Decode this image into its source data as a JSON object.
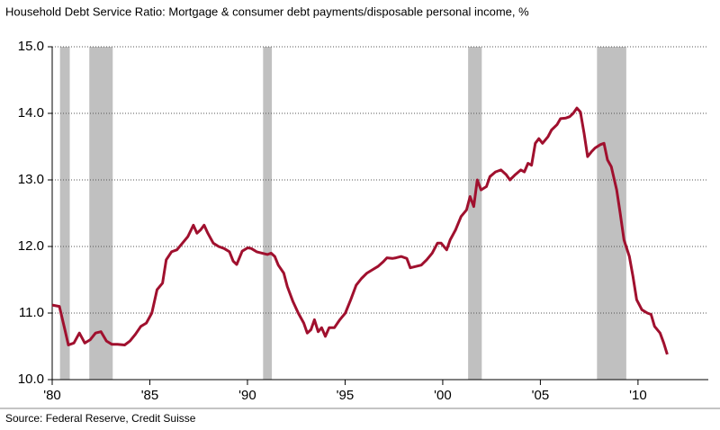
{
  "chart_data": {
    "type": "line",
    "title": "Household Debt Service Ratio: Mortgage & consumer debt payments/disposable personal income, %",
    "source": "Source: Federal Reserve, Credit Suisse",
    "xlim": [
      1980,
      2013.6
    ],
    "ylim": [
      10,
      15
    ],
    "xticks": [
      {
        "value": 1980,
        "label": "'80"
      },
      {
        "value": 1985,
        "label": "'85"
      },
      {
        "value": 1990,
        "label": "'90"
      },
      {
        "value": 1995,
        "label": "'95"
      },
      {
        "value": 2000,
        "label": "'00"
      },
      {
        "value": 2005,
        "label": "'05"
      },
      {
        "value": 2010,
        "label": "'10"
      }
    ],
    "yticks": [
      {
        "value": 10,
        "label": "10.0"
      },
      {
        "value": 11,
        "label": "11.0"
      },
      {
        "value": 12,
        "label": "12.0"
      },
      {
        "value": 13,
        "label": "13.0"
      },
      {
        "value": 14,
        "label": "14.0"
      },
      {
        "value": 15,
        "label": "15.0"
      }
    ],
    "grid": true,
    "recession_color": "#c0c0c0",
    "recessions": [
      [
        1980.4,
        1980.9
      ],
      [
        1981.9,
        1983.1
      ],
      [
        1990.8,
        1991.25
      ],
      [
        2001.3,
        2002.0
      ],
      [
        2007.9,
        2009.4
      ]
    ],
    "series": [
      {
        "color": "#a0102e",
        "x": [
          1980.0,
          1980.37,
          1980.65,
          1980.83,
          1981.11,
          1981.39,
          1981.67,
          1981.95,
          1982.22,
          1982.5,
          1982.78,
          1983.06,
          1983.34,
          1983.71,
          1983.98,
          1984.26,
          1984.54,
          1984.82,
          1985.1,
          1985.37,
          1985.65,
          1985.84,
          1986.11,
          1986.39,
          1986.67,
          1986.95,
          1987.23,
          1987.41,
          1987.6,
          1987.78,
          1987.97,
          1988.25,
          1988.52,
          1988.8,
          1989.08,
          1989.27,
          1989.45,
          1989.73,
          1990.01,
          1990.19,
          1990.47,
          1990.75,
          1991.03,
          1991.21,
          1991.4,
          1991.58,
          1991.86,
          1992.04,
          1992.32,
          1992.6,
          1992.88,
          1993.06,
          1993.25,
          1993.43,
          1993.62,
          1993.8,
          1993.99,
          1994.18,
          1994.45,
          1994.73,
          1995.01,
          1995.29,
          1995.57,
          1995.84,
          1996.12,
          1996.4,
          1996.68,
          1996.95,
          1997.14,
          1997.42,
          1997.6,
          1997.88,
          1998.16,
          1998.34,
          1998.62,
          1998.9,
          1999.18,
          1999.46,
          1999.73,
          1999.92,
          2000.2,
          2000.38,
          2000.66,
          2000.94,
          2001.22,
          2001.4,
          2001.59,
          2001.77,
          2001.96,
          2002.24,
          2002.42,
          2002.7,
          2002.98,
          2003.25,
          2003.44,
          2003.72,
          2004.0,
          2004.18,
          2004.37,
          2004.55,
          2004.74,
          2004.92,
          2005.11,
          2005.39,
          2005.57,
          2005.85,
          2006.03,
          2006.31,
          2006.5,
          2006.68,
          2006.87,
          2007.05,
          2007.24,
          2007.42,
          2007.61,
          2007.8,
          2008.07,
          2008.26,
          2008.44,
          2008.63,
          2008.91,
          2009.09,
          2009.28,
          2009.56,
          2009.74,
          2009.93,
          2010.2,
          2010.48,
          2010.67,
          2010.85,
          2011.13,
          2011.32,
          2011.5
        ],
        "values": [
          11.12,
          11.1,
          10.75,
          10.52,
          10.55,
          10.7,
          10.55,
          10.6,
          10.7,
          10.72,
          10.58,
          10.53,
          10.53,
          10.52,
          10.58,
          10.68,
          10.8,
          10.85,
          11.0,
          11.35,
          11.45,
          11.8,
          11.92,
          11.95,
          12.05,
          12.15,
          12.32,
          12.2,
          12.25,
          12.32,
          12.2,
          12.05,
          12.0,
          11.97,
          11.92,
          11.78,
          11.73,
          11.93,
          11.98,
          11.97,
          11.92,
          11.9,
          11.88,
          11.9,
          11.85,
          11.72,
          11.6,
          11.4,
          11.18,
          11.0,
          10.85,
          10.7,
          10.75,
          10.9,
          10.72,
          10.78,
          10.65,
          10.78,
          10.78,
          10.9,
          11.0,
          11.2,
          11.42,
          11.52,
          11.6,
          11.65,
          11.7,
          11.77,
          11.83,
          11.82,
          11.83,
          11.85,
          11.82,
          11.68,
          11.7,
          11.72,
          11.8,
          11.9,
          12.05,
          12.05,
          11.95,
          12.1,
          12.25,
          12.45,
          12.55,
          12.75,
          12.6,
          13.0,
          12.85,
          12.9,
          13.05,
          13.12,
          13.15,
          13.08,
          13.0,
          13.08,
          13.15,
          13.12,
          13.25,
          13.22,
          13.55,
          13.62,
          13.55,
          13.65,
          13.75,
          13.83,
          13.92,
          13.93,
          13.95,
          14.0,
          14.08,
          14.02,
          13.7,
          13.35,
          13.42,
          13.48,
          13.53,
          13.55,
          13.3,
          13.2,
          12.85,
          12.5,
          12.1,
          11.85,
          11.55,
          11.2,
          11.05,
          11.0,
          10.98,
          10.8,
          10.7,
          10.55,
          10.38
        ]
      }
    ]
  }
}
